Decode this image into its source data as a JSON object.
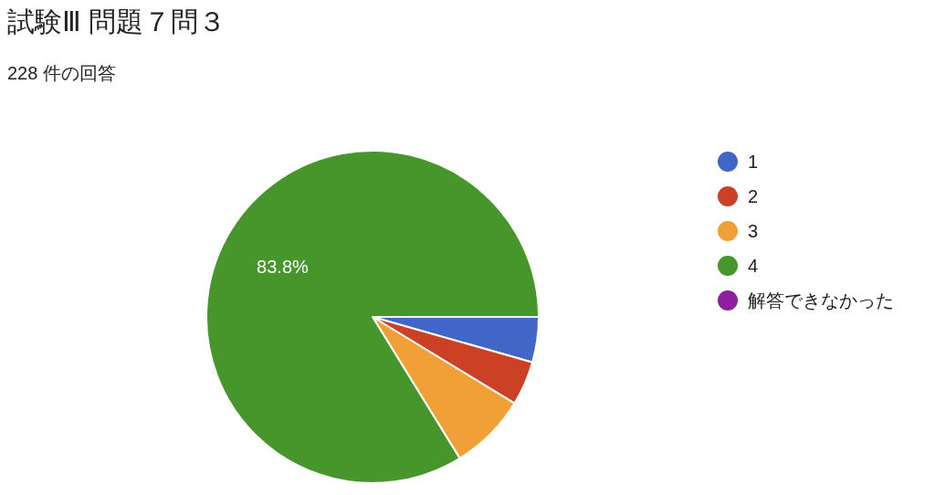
{
  "chart_data": {
    "type": "pie",
    "title": "試験Ⅲ 問題７問３",
    "subtitle": "228 件の回答",
    "categories": [
      "1",
      "2",
      "3",
      "4",
      "解答できなかった"
    ],
    "values": [
      4.4,
      4.3,
      7.5,
      83.8,
      0
    ],
    "colors": [
      "#4066c8",
      "#cc4125",
      "#f1a037",
      "#46962b",
      "#8e1f9e"
    ],
    "value_labels": [
      null,
      null,
      null,
      "83.8%",
      null
    ],
    "legend": "right"
  }
}
